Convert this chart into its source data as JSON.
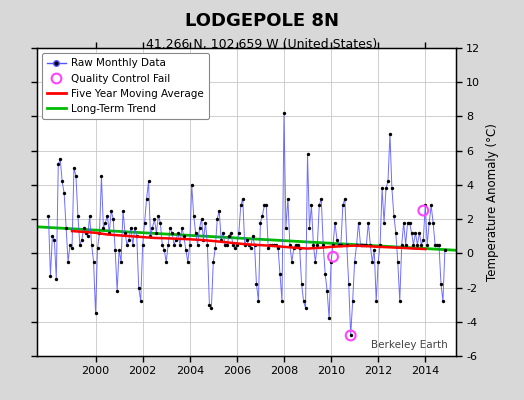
{
  "title": "LODGEPOLE 8N",
  "subtitle": "41.266 N, 102.659 W (United States)",
  "ylabel": "Temperature Anomaly (°C)",
  "watermark": "Berkeley Earth",
  "xlim": [
    1997.5,
    2015.3
  ],
  "ylim": [
    -6,
    12
  ],
  "yticks": [
    -6,
    -4,
    -2,
    0,
    2,
    4,
    6,
    8,
    10,
    12
  ],
  "xticks": [
    2000,
    2002,
    2004,
    2006,
    2008,
    2010,
    2012,
    2014
  ],
  "background_color": "#d8d8d8",
  "plot_bg_color": "#ffffff",
  "raw_color": "#5555ff",
  "dot_color": "#000000",
  "moving_avg_color": "#ff0000",
  "trend_color": "#00bb00",
  "qc_fail_color": "#ff44ff",
  "raw_data": [
    [
      1998.0,
      2.2
    ],
    [
      1998.083,
      -1.3
    ],
    [
      1998.167,
      1.0
    ],
    [
      1998.25,
      0.8
    ],
    [
      1998.333,
      -1.5
    ],
    [
      1998.417,
      5.2
    ],
    [
      1998.5,
      5.5
    ],
    [
      1998.583,
      4.2
    ],
    [
      1998.667,
      3.5
    ],
    [
      1998.75,
      1.5
    ],
    [
      1998.833,
      -0.5
    ],
    [
      1998.917,
      0.5
    ],
    [
      1999.0,
      0.3
    ],
    [
      1999.083,
      5.0
    ],
    [
      1999.167,
      4.5
    ],
    [
      1999.25,
      2.2
    ],
    [
      1999.333,
      0.5
    ],
    [
      1999.417,
      0.8
    ],
    [
      1999.5,
      1.5
    ],
    [
      1999.583,
      1.2
    ],
    [
      1999.667,
      1.0
    ],
    [
      1999.75,
      2.2
    ],
    [
      1999.833,
      0.5
    ],
    [
      1999.917,
      -0.5
    ],
    [
      2000.0,
      -3.5
    ],
    [
      2000.083,
      0.3
    ],
    [
      2000.167,
      1.2
    ],
    [
      2000.25,
      4.5
    ],
    [
      2000.333,
      1.5
    ],
    [
      2000.417,
      1.8
    ],
    [
      2000.5,
      2.2
    ],
    [
      2000.583,
      1.2
    ],
    [
      2000.667,
      2.5
    ],
    [
      2000.75,
      2.0
    ],
    [
      2000.833,
      0.2
    ],
    [
      2000.917,
      -2.2
    ],
    [
      2001.0,
      0.2
    ],
    [
      2001.083,
      -0.5
    ],
    [
      2001.167,
      2.5
    ],
    [
      2001.25,
      1.2
    ],
    [
      2001.333,
      0.5
    ],
    [
      2001.417,
      0.8
    ],
    [
      2001.5,
      1.5
    ],
    [
      2001.583,
      0.5
    ],
    [
      2001.667,
      1.5
    ],
    [
      2001.75,
      1.0
    ],
    [
      2001.833,
      -2.0
    ],
    [
      2001.917,
      -2.8
    ],
    [
      2002.0,
      0.5
    ],
    [
      2002.083,
      1.8
    ],
    [
      2002.167,
      3.2
    ],
    [
      2002.25,
      4.2
    ],
    [
      2002.333,
      1.0
    ],
    [
      2002.417,
      1.5
    ],
    [
      2002.5,
      2.0
    ],
    [
      2002.583,
      1.2
    ],
    [
      2002.667,
      2.2
    ],
    [
      2002.75,
      1.8
    ],
    [
      2002.833,
      0.5
    ],
    [
      2002.917,
      0.2
    ],
    [
      2003.0,
      -0.5
    ],
    [
      2003.083,
      0.5
    ],
    [
      2003.167,
      1.5
    ],
    [
      2003.25,
      1.2
    ],
    [
      2003.333,
      0.5
    ],
    [
      2003.417,
      0.8
    ],
    [
      2003.5,
      1.2
    ],
    [
      2003.583,
      0.5
    ],
    [
      2003.667,
      1.5
    ],
    [
      2003.75,
      1.0
    ],
    [
      2003.833,
      0.2
    ],
    [
      2003.917,
      -0.5
    ],
    [
      2004.0,
      0.5
    ],
    [
      2004.083,
      4.0
    ],
    [
      2004.167,
      2.2
    ],
    [
      2004.25,
      1.2
    ],
    [
      2004.333,
      0.5
    ],
    [
      2004.417,
      1.5
    ],
    [
      2004.5,
      2.0
    ],
    [
      2004.583,
      0.8
    ],
    [
      2004.667,
      1.8
    ],
    [
      2004.75,
      0.5
    ],
    [
      2004.833,
      -3.0
    ],
    [
      2004.917,
      -3.2
    ],
    [
      2005.0,
      -0.5
    ],
    [
      2005.083,
      0.3
    ],
    [
      2005.167,
      2.0
    ],
    [
      2005.25,
      2.5
    ],
    [
      2005.333,
      0.8
    ],
    [
      2005.417,
      1.2
    ],
    [
      2005.5,
      0.5
    ],
    [
      2005.583,
      0.5
    ],
    [
      2005.667,
      1.0
    ],
    [
      2005.75,
      1.2
    ],
    [
      2005.833,
      0.5
    ],
    [
      2005.917,
      0.3
    ],
    [
      2006.0,
      0.5
    ],
    [
      2006.083,
      1.2
    ],
    [
      2006.167,
      2.8
    ],
    [
      2006.25,
      3.2
    ],
    [
      2006.333,
      0.5
    ],
    [
      2006.417,
      0.8
    ],
    [
      2006.5,
      0.5
    ],
    [
      2006.583,
      0.3
    ],
    [
      2006.667,
      1.0
    ],
    [
      2006.75,
      0.5
    ],
    [
      2006.833,
      -1.8
    ],
    [
      2006.917,
      -2.8
    ],
    [
      2007.0,
      1.8
    ],
    [
      2007.083,
      2.2
    ],
    [
      2007.167,
      2.8
    ],
    [
      2007.25,
      2.8
    ],
    [
      2007.333,
      0.3
    ],
    [
      2007.417,
      0.5
    ],
    [
      2007.5,
      0.5
    ],
    [
      2007.583,
      0.5
    ],
    [
      2007.667,
      0.5
    ],
    [
      2007.75,
      0.3
    ],
    [
      2007.833,
      -1.2
    ],
    [
      2007.917,
      -2.8
    ],
    [
      2008.0,
      8.2
    ],
    [
      2008.083,
      1.5
    ],
    [
      2008.167,
      3.2
    ],
    [
      2008.25,
      0.5
    ],
    [
      2008.333,
      -0.5
    ],
    [
      2008.417,
      0.3
    ],
    [
      2008.5,
      0.5
    ],
    [
      2008.583,
      0.5
    ],
    [
      2008.667,
      0.3
    ],
    [
      2008.75,
      -1.8
    ],
    [
      2008.833,
      -2.8
    ],
    [
      2008.917,
      -3.2
    ],
    [
      2009.0,
      5.8
    ],
    [
      2009.083,
      1.5
    ],
    [
      2009.167,
      2.8
    ],
    [
      2009.25,
      0.5
    ],
    [
      2009.333,
      -0.5
    ],
    [
      2009.417,
      0.5
    ],
    [
      2009.5,
      2.8
    ],
    [
      2009.583,
      3.2
    ],
    [
      2009.667,
      0.5
    ],
    [
      2009.75,
      -1.2
    ],
    [
      2009.833,
      -2.2
    ],
    [
      2009.917,
      -3.8
    ],
    [
      2010.0,
      -0.5
    ],
    [
      2010.083,
      0.5
    ],
    [
      2010.167,
      1.8
    ],
    [
      2010.25,
      0.8
    ],
    [
      2010.333,
      0.5
    ],
    [
      2010.417,
      0.5
    ],
    [
      2010.5,
      2.8
    ],
    [
      2010.583,
      3.2
    ],
    [
      2010.667,
      0.5
    ],
    [
      2010.75,
      -1.8
    ],
    [
      2010.833,
      -4.8
    ],
    [
      2010.917,
      -2.8
    ],
    [
      2011.0,
      -0.5
    ],
    [
      2011.083,
      0.5
    ],
    [
      2011.167,
      1.8
    ],
    [
      2011.25,
      0.5
    ],
    [
      2011.333,
      0.5
    ],
    [
      2011.417,
      0.5
    ],
    [
      2011.5,
      0.5
    ],
    [
      2011.583,
      1.8
    ],
    [
      2011.667,
      0.5
    ],
    [
      2011.75,
      -0.5
    ],
    [
      2011.833,
      0.2
    ],
    [
      2011.917,
      -2.8
    ],
    [
      2012.0,
      -0.5
    ],
    [
      2012.083,
      0.5
    ],
    [
      2012.167,
      3.8
    ],
    [
      2012.25,
      1.8
    ],
    [
      2012.333,
      3.8
    ],
    [
      2012.417,
      4.2
    ],
    [
      2012.5,
      7.0
    ],
    [
      2012.583,
      3.8
    ],
    [
      2012.667,
      2.2
    ],
    [
      2012.75,
      1.2
    ],
    [
      2012.833,
      -0.5
    ],
    [
      2012.917,
      -2.8
    ],
    [
      2013.0,
      0.5
    ],
    [
      2013.083,
      1.8
    ],
    [
      2013.167,
      0.5
    ],
    [
      2013.25,
      1.8
    ],
    [
      2013.333,
      1.8
    ],
    [
      2013.417,
      1.2
    ],
    [
      2013.5,
      0.5
    ],
    [
      2013.583,
      1.2
    ],
    [
      2013.667,
      0.5
    ],
    [
      2013.75,
      1.2
    ],
    [
      2013.833,
      0.5
    ],
    [
      2013.917,
      0.8
    ],
    [
      2014.0,
      2.8
    ],
    [
      2014.083,
      0.5
    ],
    [
      2014.167,
      1.8
    ],
    [
      2014.25,
      2.8
    ],
    [
      2014.333,
      1.8
    ],
    [
      2014.417,
      0.5
    ],
    [
      2014.5,
      0.5
    ],
    [
      2014.583,
      0.5
    ],
    [
      2014.667,
      -1.8
    ],
    [
      2014.75,
      -2.8
    ],
    [
      2014.833,
      0.2
    ]
  ],
  "qc_fail_points": [
    [
      2010.083,
      -0.2
    ],
    [
      2010.833,
      -4.8
    ],
    [
      2013.917,
      2.5
    ]
  ],
  "moving_avg": [
    [
      1999.0,
      1.3
    ],
    [
      1999.5,
      1.25
    ],
    [
      2000.0,
      1.2
    ],
    [
      2000.5,
      1.1
    ],
    [
      2001.0,
      1.05
    ],
    [
      2001.5,
      1.0
    ],
    [
      2002.0,
      0.95
    ],
    [
      2002.5,
      0.9
    ],
    [
      2003.0,
      0.88
    ],
    [
      2003.5,
      0.85
    ],
    [
      2004.0,
      0.82
    ],
    [
      2004.5,
      0.78
    ],
    [
      2005.0,
      0.72
    ],
    [
      2005.5,
      0.65
    ],
    [
      2006.0,
      0.58
    ],
    [
      2006.5,
      0.52
    ],
    [
      2007.0,
      0.48
    ],
    [
      2007.5,
      0.44
    ],
    [
      2008.0,
      0.38
    ],
    [
      2008.5,
      0.32
    ],
    [
      2009.0,
      0.28
    ],
    [
      2009.5,
      0.32
    ],
    [
      2010.0,
      0.38
    ],
    [
      2010.5,
      0.42
    ],
    [
      2011.0,
      0.45
    ],
    [
      2011.5,
      0.42
    ],
    [
      2012.0,
      0.38
    ],
    [
      2012.5,
      0.35
    ],
    [
      2013.0,
      0.32
    ],
    [
      2013.5,
      0.28
    ],
    [
      2014.0,
      0.25
    ]
  ],
  "trend_line": [
    [
      1997.5,
      1.55
    ],
    [
      2015.3,
      0.18
    ]
  ]
}
